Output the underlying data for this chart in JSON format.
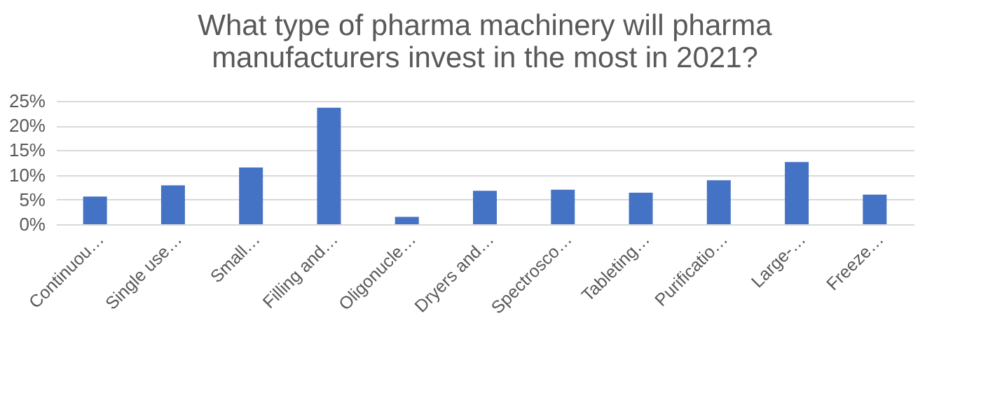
{
  "chart_data": {
    "type": "bar",
    "title": [
      "What type of pharma machinery will pharma",
      "manufacturers invest in the most in 2021?"
    ],
    "categories": [
      "Continuou…",
      "Single use…",
      "Small…",
      "Filling and…",
      "Oligonucle…",
      "Dryers and…",
      "Spectrosco…",
      "Tableting…",
      "Purificatio…",
      "Large-…",
      "Freeze…"
    ],
    "values": [
      5.6,
      7.9,
      11.5,
      23.6,
      1.5,
      6.8,
      7.0,
      6.4,
      8.9,
      12.6,
      6.0
    ],
    "color": "#4472c4",
    "ylim": [
      0,
      25
    ],
    "yticks": [
      {
        "value": 0,
        "label": "0%"
      },
      {
        "value": 5,
        "label": "5%"
      },
      {
        "value": 10,
        "label": "10%"
      },
      {
        "value": 15,
        "label": "15%"
      },
      {
        "value": 20,
        "label": "20%"
      },
      {
        "value": 25,
        "label": "25%"
      }
    ],
    "grid": "y"
  }
}
